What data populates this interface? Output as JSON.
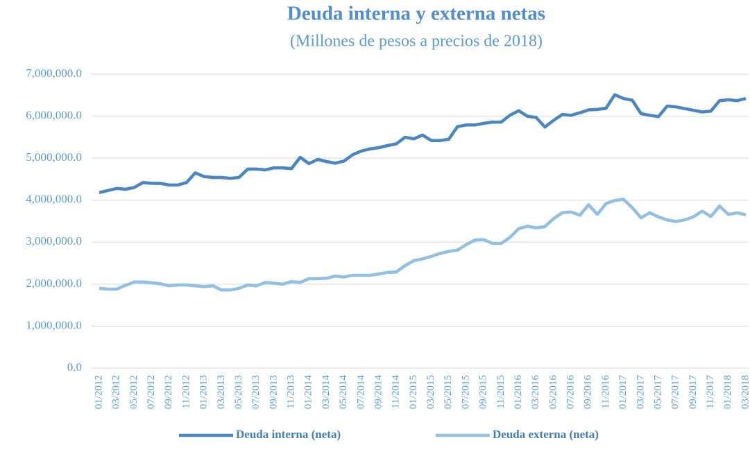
{
  "chart_data": {
    "type": "line",
    "title": "Deuda interna y externa netas",
    "subtitle": "(Millones de pesos a precios de 2018)",
    "categories": [
      "01/2012",
      null,
      "03/2012",
      null,
      "05/2012",
      null,
      "07/2012",
      null,
      "09/2012",
      null,
      "11/2012",
      null,
      "01/2013",
      null,
      "03/2013",
      null,
      "05/2013",
      null,
      "07/2013",
      null,
      "09/2013",
      null,
      "11/2013",
      null,
      "01/2014",
      null,
      "03/2014",
      null,
      "05/2014",
      null,
      "07/2014",
      null,
      "09/2014",
      null,
      "11/2014",
      null,
      "01/2015",
      null,
      "03/2015",
      null,
      "05/2015",
      null,
      "07/2015",
      null,
      "09/2015",
      null,
      "11/2015",
      null,
      "01/2016",
      null,
      "03/2016",
      null,
      "05/2016",
      null,
      "07/2016",
      null,
      "09/2016",
      null,
      "11/2016",
      null,
      "01/2017",
      null,
      "03/2017",
      null,
      "05/2017",
      null,
      "07/2017",
      null,
      "09/2017",
      null,
      "11/2017",
      null,
      "01/2018",
      null,
      "03/2018"
    ],
    "series": [
      {
        "name": "Deuda interna (neta)",
        "color": "#4a86c2",
        "values": [
          4180000,
          4230000,
          4280000,
          4260000,
          4300000,
          4420000,
          4400000,
          4400000,
          4360000,
          4360000,
          4420000,
          4650000,
          4560000,
          4540000,
          4540000,
          4520000,
          4540000,
          4740000,
          4740000,
          4720000,
          4770000,
          4770000,
          4750000,
          5020000,
          4870000,
          4970000,
          4920000,
          4880000,
          4930000,
          5080000,
          5170000,
          5220000,
          5250000,
          5300000,
          5340000,
          5500000,
          5460000,
          5550000,
          5420000,
          5420000,
          5450000,
          5750000,
          5790000,
          5790000,
          5830000,
          5860000,
          5860000,
          6020000,
          6130000,
          6000000,
          5970000,
          5740000,
          5900000,
          6040000,
          6020000,
          6080000,
          6150000,
          6160000,
          6190000,
          6510000,
          6420000,
          6380000,
          6060000,
          6020000,
          5990000,
          6240000,
          6220000,
          6180000,
          6140000,
          6100000,
          6120000,
          6370000,
          6390000,
          6370000,
          6420000
        ]
      },
      {
        "name": "Deuda externa (neta)",
        "color": "#92bfe4",
        "values": [
          1900000,
          1880000,
          1880000,
          1970000,
          2050000,
          2050000,
          2030000,
          2010000,
          1960000,
          1980000,
          1980000,
          1960000,
          1940000,
          1960000,
          1860000,
          1860000,
          1900000,
          1980000,
          1960000,
          2040000,
          2020000,
          2000000,
          2060000,
          2040000,
          2130000,
          2130000,
          2140000,
          2190000,
          2170000,
          2210000,
          2210000,
          2210000,
          2240000,
          2280000,
          2290000,
          2440000,
          2560000,
          2600000,
          2660000,
          2730000,
          2780000,
          2810000,
          2940000,
          3050000,
          3060000,
          2970000,
          2970000,
          3110000,
          3320000,
          3380000,
          3340000,
          3370000,
          3560000,
          3700000,
          3720000,
          3640000,
          3890000,
          3660000,
          3920000,
          3990000,
          4020000,
          3820000,
          3580000,
          3700000,
          3600000,
          3530000,
          3490000,
          3530000,
          3600000,
          3740000,
          3610000,
          3860000,
          3660000,
          3700000,
          3650000
        ]
      }
    ],
    "ylim": [
      0,
      7000000
    ],
    "yticks": [
      {
        "value": 0,
        "label": "0.0"
      },
      {
        "value": 1000000,
        "label": "1,000,000.0"
      },
      {
        "value": 2000000,
        "label": "2,000,000.0"
      },
      {
        "value": 3000000,
        "label": "3,000,000.0"
      },
      {
        "value": 4000000,
        "label": "4,000,000.0"
      },
      {
        "value": 5000000,
        "label": "5,000,000.0"
      },
      {
        "value": 6000000,
        "label": "6,000,000.0"
      },
      {
        "value": 7000000,
        "label": "7,000,000.0"
      }
    ],
    "grid": true,
    "legend": "bottom"
  }
}
